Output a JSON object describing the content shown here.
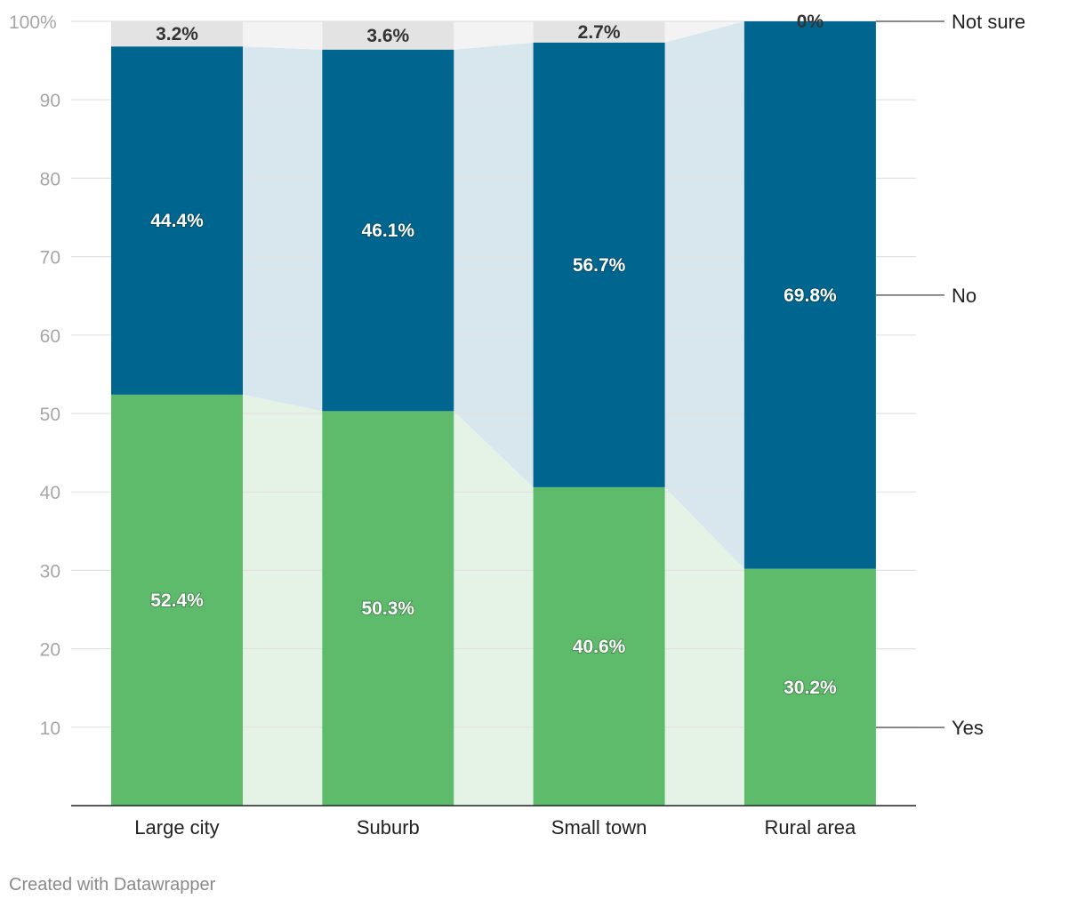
{
  "chart_data": {
    "type": "bar",
    "stacked": true,
    "categories": [
      "Large city",
      "Suburb",
      "Small town",
      "Rural area"
    ],
    "series": [
      {
        "name": "Yes",
        "values": [
          52.4,
          50.3,
          40.6,
          30.2
        ],
        "labels": [
          "52.4%",
          "50.3%",
          "40.6%",
          "30.2%"
        ],
        "color": "#5ebb6b",
        "band_color": "#e5f3e6"
      },
      {
        "name": "No",
        "values": [
          44.4,
          46.1,
          56.7,
          69.8
        ],
        "labels": [
          "44.4%",
          "46.1%",
          "56.7%",
          "69.8%"
        ],
        "color": "#00668f",
        "band_color": "#d8e7ee"
      },
      {
        "name": "Not sure",
        "values": [
          3.2,
          3.6,
          2.7,
          0
        ],
        "labels": [
          "3.2%",
          "3.6%",
          "2.7%",
          "0%"
        ],
        "color": "#e3e3e3",
        "band_color": "#f3f3f3"
      }
    ],
    "yticks": [
      "10",
      "20",
      "30",
      "40",
      "50",
      "60",
      "70",
      "80",
      "90",
      "100%"
    ],
    "ylim": [
      0,
      100
    ],
    "grid": true,
    "legend_position": "right, direct labels"
  },
  "credit": "Created with Datawrapper"
}
